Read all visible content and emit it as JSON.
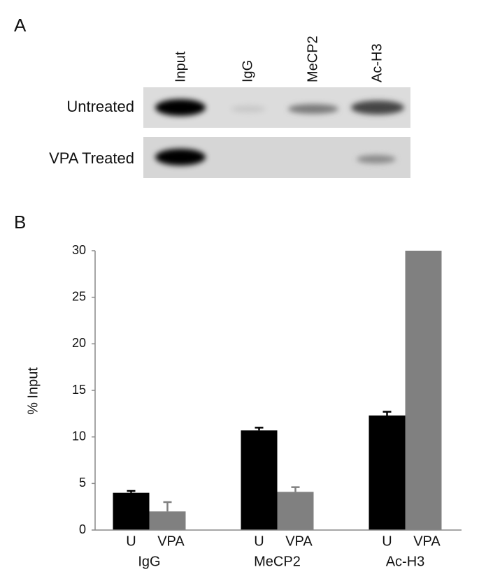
{
  "panel_a": {
    "label": "A",
    "lanes": [
      "Input",
      "IgG",
      "MeCP2",
      "Ac-H3"
    ],
    "rows": [
      "Untreated",
      "VPA Treated"
    ]
  },
  "chart_data": {
    "type": "bar",
    "panel_label": "B",
    "y_label": "% Input",
    "categories": [
      "IgG",
      "MeCP2",
      "Ac-H3"
    ],
    "series": [
      {
        "name": "U",
        "color": "#000000",
        "values": [
          4.0,
          10.7,
          12.3
        ],
        "errors": [
          0.2,
          0.3,
          0.4
        ]
      },
      {
        "name": "VPA",
        "color": "#808080",
        "values": [
          2.0,
          4.1,
          30
        ],
        "errors": [
          1.0,
          0.5,
          null
        ]
      }
    ],
    "ylim": [
      0,
      30
    ],
    "yticks": [
      0,
      5,
      10,
      15,
      20,
      25,
      30
    ],
    "grid": false
  }
}
